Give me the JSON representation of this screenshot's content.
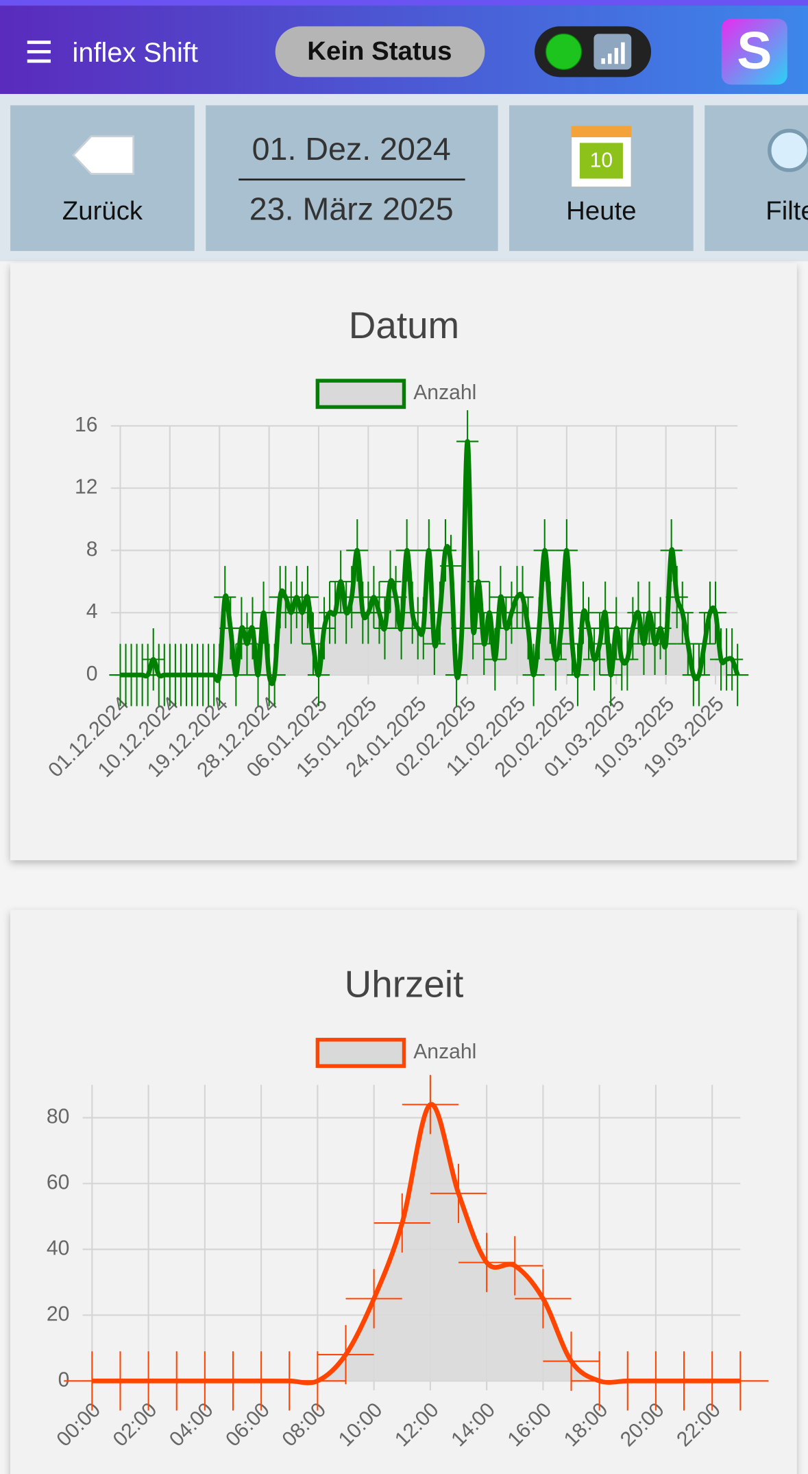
{
  "header": {
    "title": "inflex Shift",
    "status": "Kein Status",
    "logo": "S"
  },
  "toolbar": {
    "back": "Zurück",
    "date_from": "01. Dez. 2024",
    "date_to": "23. März 2025",
    "calendar_day": "10",
    "today": "Heute",
    "filter": "Filter"
  },
  "chart_data": [
    {
      "type": "line",
      "title": "Datum",
      "smooth": true,
      "grid": true,
      "area_color": "#d9d9d9",
      "error": 2,
      "x_error": 1,
      "categories": [
        "01.12.2024",
        null,
        null,
        null,
        null,
        null,
        null,
        null,
        null,
        "10.12.2024",
        null,
        null,
        null,
        null,
        null,
        null,
        null,
        null,
        "19.12.2024",
        null,
        null,
        null,
        null,
        null,
        null,
        null,
        null,
        "28.12.2024",
        null,
        null,
        null,
        null,
        null,
        null,
        null,
        null,
        "06.01.2025",
        null,
        null,
        null,
        null,
        null,
        null,
        null,
        null,
        "15.01.2025",
        null,
        null,
        null,
        null,
        null,
        null,
        null,
        null,
        "24.01.2025",
        null,
        null,
        null,
        null,
        null,
        null,
        null,
        null,
        "02.02.2025",
        null,
        null,
        null,
        null,
        null,
        null,
        null,
        null,
        "11.02.2025",
        null,
        null,
        null,
        null,
        null,
        null,
        null,
        null,
        "20.02.2025",
        null,
        null,
        null,
        null,
        null,
        null,
        null,
        null,
        "01.03.2025",
        null,
        null,
        null,
        null,
        null,
        null,
        null,
        null,
        "10.03.2025",
        null,
        null,
        null,
        null,
        null,
        null,
        null,
        null,
        "19.03.2025",
        null,
        null,
        null,
        null
      ],
      "series": [
        {
          "name": "Anzahl",
          "color": "#008000",
          "values": [
            0,
            0,
            0,
            0,
            0,
            0,
            1,
            0,
            0,
            0,
            0,
            0,
            0,
            0,
            0,
            0,
            0,
            0,
            0,
            5,
            3,
            0,
            3,
            2,
            3,
            0,
            4,
            0,
            0,
            5,
            5,
            4,
            5,
            4,
            5,
            2,
            0,
            3,
            4,
            4,
            6,
            4,
            5,
            8,
            4,
            4,
            5,
            4,
            3,
            6,
            5,
            3,
            8,
            4,
            3,
            3,
            8,
            2,
            4,
            8,
            7,
            0,
            3,
            15,
            3,
            6,
            2,
            4,
            1,
            5,
            3,
            4,
            5,
            5,
            3,
            0,
            3,
            8,
            4,
            1,
            3,
            8,
            2,
            0,
            4,
            3,
            1,
            2,
            4,
            0,
            3,
            1,
            1,
            3,
            4,
            2,
            4,
            2,
            3,
            2,
            8,
            5,
            4,
            2,
            0,
            0,
            2,
            4,
            4,
            1,
            1,
            1,
            0
          ]
        }
      ],
      "ylim": [
        0,
        16
      ],
      "yticks": [
        0,
        4,
        8,
        12,
        16
      ]
    },
    {
      "type": "line",
      "title": "Uhrzeit",
      "smooth": true,
      "grid": true,
      "area_color": "#d9d9d9",
      "error": 9,
      "x_error": 0.5,
      "categories": [
        "00:00",
        null,
        "02:00",
        null,
        "04:00",
        null,
        "06:00",
        null,
        "08:00",
        null,
        "10:00",
        null,
        "12:00",
        null,
        "14:00",
        null,
        "16:00",
        null,
        "18:00",
        null,
        "20:00",
        null,
        "22:00",
        null
      ],
      "series": [
        {
          "name": "Anzahl",
          "color": "#ff4500",
          "values": [
            0,
            0,
            0,
            0,
            0,
            0,
            0,
            0,
            0,
            8,
            25,
            48,
            84,
            57,
            36,
            35,
            25,
            6,
            0,
            0,
            0,
            0,
            0,
            0
          ]
        }
      ],
      "ylim": [
        0,
        90
      ],
      "yticks": [
        0,
        20,
        40,
        60,
        80
      ]
    }
  ]
}
